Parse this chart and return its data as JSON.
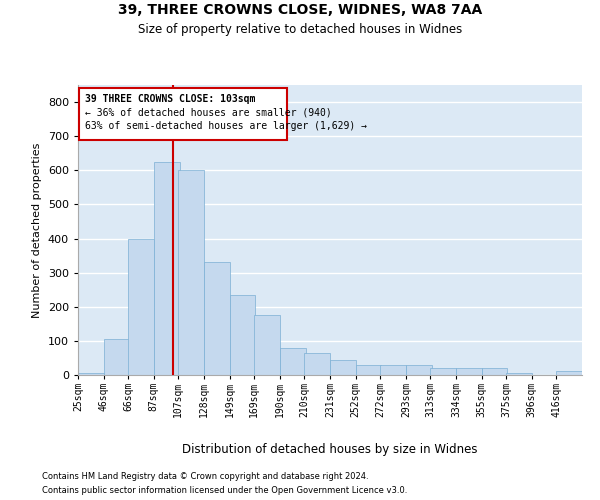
{
  "title1": "39, THREE CROWNS CLOSE, WIDNES, WA8 7AA",
  "title2": "Size of property relative to detached houses in Widnes",
  "xlabel": "Distribution of detached houses by size in Widnes",
  "ylabel": "Number of detached properties",
  "footnote1": "Contains HM Land Registry data © Crown copyright and database right 2024.",
  "footnote2": "Contains public sector information licensed under the Open Government Licence v3.0.",
  "annotation_line1": "39 THREE CROWNS CLOSE: 103sqm",
  "annotation_line2": "← 36% of detached houses are smaller (940)",
  "annotation_line3": "63% of semi-detached houses are larger (1,629) →",
  "bar_color": "#c5d9ee",
  "bar_edge_color": "#7aafd4",
  "line_color": "#cc0000",
  "bins": [
    25,
    46,
    66,
    87,
    107,
    128,
    149,
    169,
    190,
    210,
    231,
    252,
    272,
    293,
    313,
    334,
    355,
    375,
    396,
    416,
    437
  ],
  "counts": [
    5,
    105,
    400,
    625,
    600,
    330,
    235,
    175,
    80,
    65,
    45,
    30,
    30,
    30,
    20,
    20,
    20,
    5,
    0,
    12
  ],
  "property_size": 103,
  "ylim": [
    0,
    850
  ],
  "yticks": [
    0,
    100,
    200,
    300,
    400,
    500,
    600,
    700,
    800
  ],
  "bg_color": "#dce9f5"
}
